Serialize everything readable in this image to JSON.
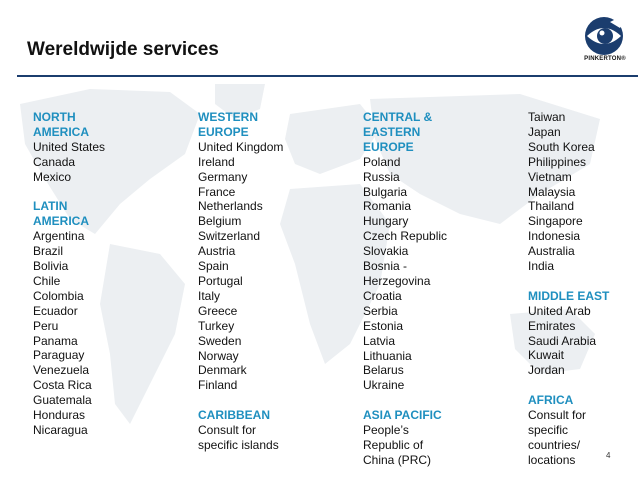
{
  "title": "Wereldwijde services",
  "logo_text": "PINKERTON®",
  "page_number": "4",
  "colors": {
    "heading": "#1f8fbf",
    "rule": "#1b3d6e",
    "map": "#e9ecef"
  },
  "columns": [
    [
      {
        "type": "h",
        "text": "NORTH"
      },
      {
        "type": "h",
        "text": "AMERICA"
      },
      {
        "type": "t",
        "text": "United States"
      },
      {
        "type": "t",
        "text": "Canada"
      },
      {
        "type": "t",
        "text": "Mexico"
      },
      {
        "type": "gap"
      },
      {
        "type": "h",
        "text": "LATIN"
      },
      {
        "type": "h",
        "text": "AMERICA"
      },
      {
        "type": "t",
        "text": "Argentina"
      },
      {
        "type": "t",
        "text": "Brazil"
      },
      {
        "type": "t",
        "text": "Bolivia"
      },
      {
        "type": "t",
        "text": "Chile"
      },
      {
        "type": "t",
        "text": "Colombia"
      },
      {
        "type": "t",
        "text": "Ecuador"
      },
      {
        "type": "t",
        "text": "Peru"
      },
      {
        "type": "t",
        "text": "Panama"
      },
      {
        "type": "t",
        "text": "Paraguay"
      },
      {
        "type": "t",
        "text": "Venezuela"
      },
      {
        "type": "t",
        "text": "Costa Rica"
      },
      {
        "type": "t",
        "text": "Guatemala"
      },
      {
        "type": "t",
        "text": "Honduras"
      },
      {
        "type": "t",
        "text": "Nicaragua"
      }
    ],
    [
      {
        "type": "h",
        "text": "WESTERN"
      },
      {
        "type": "h",
        "text": "EUROPE"
      },
      {
        "type": "t",
        "text": "United Kingdom"
      },
      {
        "type": "t",
        "text": "Ireland"
      },
      {
        "type": "t",
        "text": "Germany"
      },
      {
        "type": "t",
        "text": "France"
      },
      {
        "type": "t",
        "text": "Netherlands"
      },
      {
        "type": "t",
        "text": "Belgium"
      },
      {
        "type": "t",
        "text": "Switzerland"
      },
      {
        "type": "t",
        "text": "Austria"
      },
      {
        "type": "t",
        "text": "Spain"
      },
      {
        "type": "t",
        "text": "Portugal"
      },
      {
        "type": "t",
        "text": "Italy"
      },
      {
        "type": "t",
        "text": "Greece"
      },
      {
        "type": "t",
        "text": "Turkey"
      },
      {
        "type": "t",
        "text": "Sweden"
      },
      {
        "type": "t",
        "text": "Norway"
      },
      {
        "type": "t",
        "text": "Denmark"
      },
      {
        "type": "t",
        "text": "Finland"
      },
      {
        "type": "gap"
      },
      {
        "type": "h",
        "text": "CARIBBEAN"
      },
      {
        "type": "t",
        "text": "Consult for"
      },
      {
        "type": "t",
        "text": "specific islands"
      }
    ],
    [
      {
        "type": "h",
        "text": "CENTRAL &"
      },
      {
        "type": "h",
        "text": "EASTERN"
      },
      {
        "type": "h",
        "text": "EUROPE"
      },
      {
        "type": "t",
        "text": "Poland"
      },
      {
        "type": "t",
        "text": "Russia"
      },
      {
        "type": "t",
        "text": "Bulgaria"
      },
      {
        "type": "t",
        "text": "Romania"
      },
      {
        "type": "t",
        "text": "Hungary"
      },
      {
        "type": "t",
        "text": "Czech Republic"
      },
      {
        "type": "t",
        "text": "Slovakia"
      },
      {
        "type": "t",
        "text": "Bosnia -"
      },
      {
        "type": "t",
        "text": "Herzegovina"
      },
      {
        "type": "t",
        "text": "Croatia"
      },
      {
        "type": "t",
        "text": "Serbia"
      },
      {
        "type": "t",
        "text": "Estonia"
      },
      {
        "type": "t",
        "text": "Latvia"
      },
      {
        "type": "t",
        "text": "Lithuania"
      },
      {
        "type": "t",
        "text": "Belarus"
      },
      {
        "type": "t",
        "text": "Ukraine"
      },
      {
        "type": "gap"
      },
      {
        "type": "h",
        "text": "ASIA PACIFIC"
      },
      {
        "type": "t",
        "text": "People’s"
      },
      {
        "type": "t",
        "text": "Republic of"
      },
      {
        "type": "t",
        "text": "China (PRC)"
      }
    ],
    [
      {
        "type": "t",
        "text": "Taiwan"
      },
      {
        "type": "t",
        "text": "Japan"
      },
      {
        "type": "t",
        "text": "South Korea"
      },
      {
        "type": "t",
        "text": "Philippines"
      },
      {
        "type": "t",
        "text": "Vietnam"
      },
      {
        "type": "t",
        "text": "Malaysia"
      },
      {
        "type": "t",
        "text": "Thailand"
      },
      {
        "type": "t",
        "text": "Singapore"
      },
      {
        "type": "t",
        "text": "Indonesia"
      },
      {
        "type": "t",
        "text": "Australia"
      },
      {
        "type": "t",
        "text": "India"
      },
      {
        "type": "gap"
      },
      {
        "type": "h",
        "text": "MIDDLE EAST"
      },
      {
        "type": "t",
        "text": "United Arab"
      },
      {
        "type": "t",
        "text": "Emirates"
      },
      {
        "type": "t",
        "text": "Saudi Arabia"
      },
      {
        "type": "t",
        "text": "Kuwait"
      },
      {
        "type": "t",
        "text": "Jordan"
      },
      {
        "type": "gap"
      },
      {
        "type": "h",
        "text": "AFRICA"
      },
      {
        "type": "t",
        "text": "Consult for"
      },
      {
        "type": "t",
        "text": "specific"
      },
      {
        "type": "t",
        "text": "countries/"
      },
      {
        "type": "t",
        "text": "locations"
      }
    ]
  ]
}
